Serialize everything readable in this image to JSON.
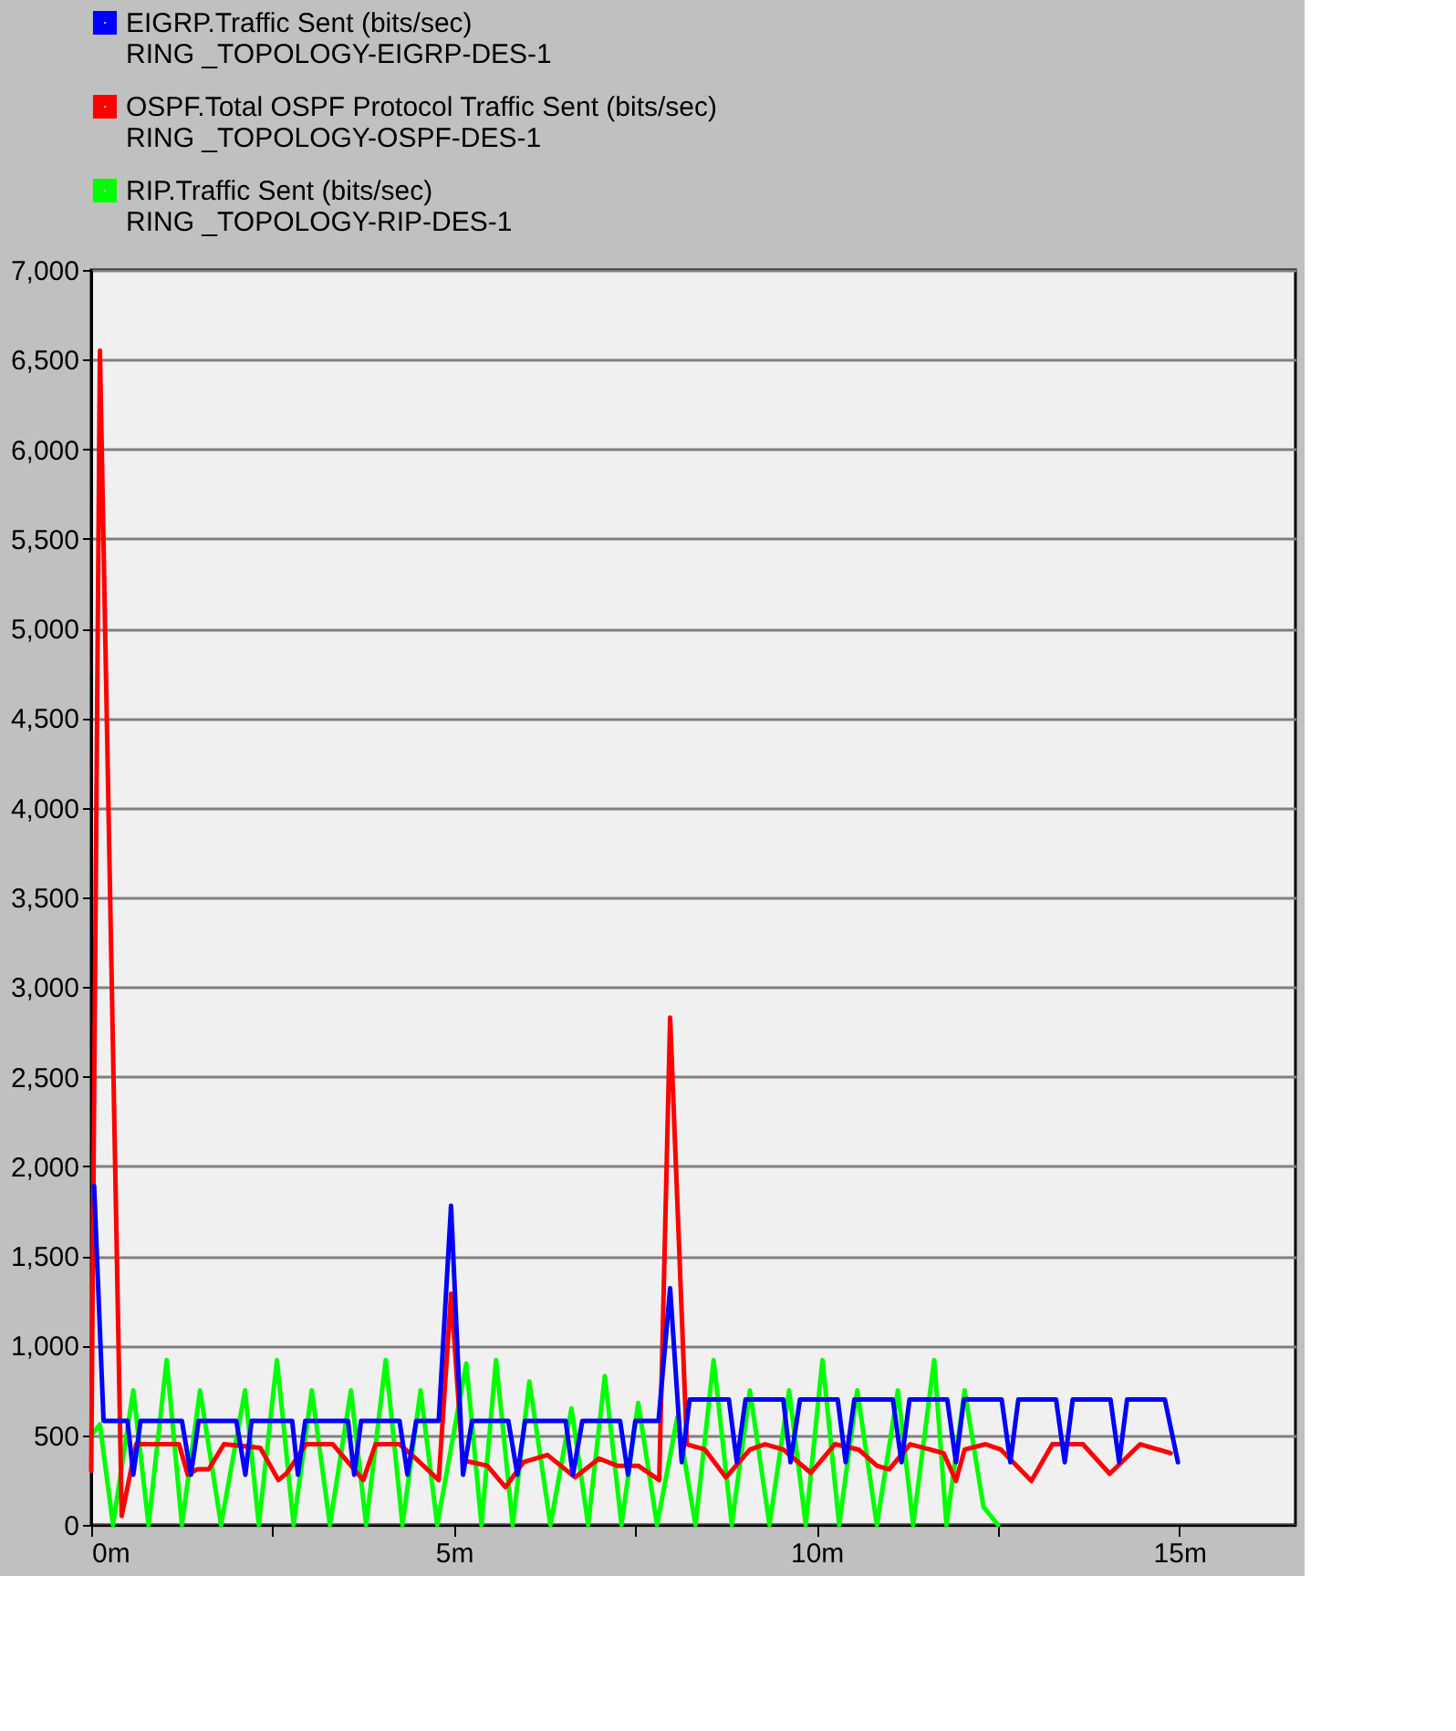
{
  "chart_data": {
    "type": "line",
    "xlim": [
      0,
      16.6
    ],
    "xticks": [
      {
        "value": 0,
        "label": "0m"
      },
      {
        "value": 2.5,
        "label": null
      },
      {
        "value": 5,
        "label": "5m"
      },
      {
        "value": 7.5,
        "label": null
      },
      {
        "value": 10,
        "label": "10m"
      },
      {
        "value": 12.5,
        "label": null
      },
      {
        "value": 15,
        "label": "15m"
      }
    ],
    "ylim": [
      0,
      7000
    ],
    "yticks": [
      0,
      500,
      {
        "value": 1000,
        "label": "1,000"
      },
      {
        "value": 1500,
        "label": "1,500"
      },
      {
        "value": 2000,
        "label": "2,000"
      },
      {
        "value": 2500,
        "label": "2,500"
      },
      {
        "value": 3000,
        "label": "3,000"
      },
      {
        "value": 3500,
        "label": "3,500"
      },
      {
        "value": 4000,
        "label": "4,000"
      },
      {
        "value": 4500,
        "label": "4,500"
      },
      {
        "value": 5000,
        "label": "5,000"
      },
      {
        "value": 5500,
        "label": "5,500"
      },
      {
        "value": 6000,
        "label": "6,000"
      },
      {
        "value": 6500,
        "label": "6,500"
      },
      {
        "value": 7000,
        "label": "7,000"
      }
    ],
    "grid": "y",
    "legend": "top left",
    "marker": "none",
    "line_style": "solid",
    "series": [
      {
        "name": "EIGRP.Traffic Sent (bits/sec)\nRING _TOPOLOGY-EIGRP-DES-1",
        "color": "#0000ff",
        "x": [
          0.04,
          0.17,
          0.5,
          0.58,
          0.68,
          1.25,
          1.375,
          1.48,
          2.0,
          2.125,
          2.21,
          2.77,
          2.85,
          2.95,
          3.54,
          3.625,
          3.72,
          4.25,
          4.36,
          4.48,
          4.79,
          4.96,
          5.125,
          5.25,
          5.75,
          5.875,
          5.98,
          6.54,
          6.64,
          6.77,
          7.29,
          7.4,
          7.5,
          7.82,
          7.98,
          8.14,
          8.25,
          8.79,
          8.9,
          9.02,
          9.54,
          9.64,
          9.77,
          10.29,
          10.4,
          10.52,
          11.05,
          11.17,
          11.28,
          11.8,
          11.92,
          12.03,
          12.55,
          12.67,
          12.78,
          13.3,
          13.42,
          13.53,
          14.05,
          14.17,
          14.28,
          14.8,
          14.98
        ],
        "values": [
          1890,
          580,
          580,
          280,
          580,
          580,
          280,
          580,
          580,
          280,
          580,
          580,
          280,
          580,
          580,
          280,
          580,
          580,
          280,
          580,
          580,
          1780,
          280,
          580,
          580,
          280,
          580,
          580,
          280,
          580,
          580,
          280,
          580,
          580,
          1320,
          350,
          700,
          700,
          350,
          700,
          700,
          350,
          700,
          700,
          350,
          700,
          700,
          350,
          700,
          700,
          350,
          700,
          700,
          350,
          700,
          700,
          350,
          700,
          700,
          350,
          700,
          700,
          350
        ]
      },
      {
        "name": "OSPF.Total OSPF Protocol Traffic Sent (bits/sec)\nRING _TOPOLOGY-OSPF-DES-1",
        "color": "#ff0000",
        "x": [
          0.0,
          0.12,
          0.42,
          0.62,
          1.21,
          1.33,
          1.46,
          1.62,
          1.83,
          2.33,
          2.58,
          2.7,
          2.96,
          3.33,
          3.75,
          3.92,
          4.25,
          4.5,
          4.79,
          4.96,
          5.12,
          5.46,
          5.71,
          5.96,
          6.29,
          6.67,
          7.0,
          7.25,
          7.54,
          7.83,
          7.98,
          8.21,
          8.46,
          8.75,
          9.08,
          9.29,
          9.54,
          9.92,
          10.25,
          10.58,
          10.83,
          11.0,
          11.29,
          11.75,
          11.92,
          12.04,
          12.33,
          12.54,
          12.96,
          13.25,
          13.67,
          14.04,
          14.46,
          14.88
        ],
        "values": [
          300,
          6550,
          50,
          450,
          450,
          280,
          310,
          310,
          450,
          430,
          250,
          290,
          450,
          450,
          250,
          450,
          450,
          360,
          250,
          1290,
          360,
          330,
          210,
          350,
          390,
          265,
          370,
          330,
          330,
          250,
          2830,
          450,
          420,
          265,
          420,
          450,
          420,
          290,
          450,
          420,
          330,
          310,
          450,
          400,
          245,
          420,
          450,
          420,
          245,
          450,
          450,
          285,
          450,
          400
        ]
      },
      {
        "name": "RIP.Traffic Sent (bits/sec)\nRING _TOPOLOGY-RIP-DES-1",
        "color": "#00ff00",
        "x": [
          0,
          0.12,
          0.3,
          0.58,
          0.79,
          1.04,
          1.25,
          1.5,
          1.79,
          2.12,
          2.31,
          2.56,
          2.79,
          3.04,
          3.29,
          3.58,
          3.79,
          4.06,
          4.29,
          4.54,
          4.77,
          5.17,
          5.38,
          5.58,
          5.81,
          6.04,
          6.33,
          6.62,
          6.85,
          7.08,
          7.31,
          7.54,
          7.8,
          8.08,
          8.33,
          8.58,
          8.83,
          9.08,
          9.35,
          9.62,
          9.85,
          10.08,
          10.31,
          10.56,
          10.83,
          11.12,
          11.33,
          11.62,
          11.79,
          12.04,
          12.3,
          12.5
        ],
        "values": [
          500,
          560,
          0,
          750,
          0,
          920,
          0,
          750,
          0,
          750,
          0,
          920,
          0,
          750,
          0,
          750,
          0,
          920,
          0,
          750,
          0,
          900,
          0,
          920,
          0,
          800,
          0,
          650,
          0,
          830,
          0,
          680,
          0,
          600,
          0,
          920,
          0,
          750,
          0,
          750,
          0,
          920,
          0,
          750,
          0,
          750,
          0,
          920,
          0,
          750,
          100,
          0
        ]
      }
    ]
  }
}
